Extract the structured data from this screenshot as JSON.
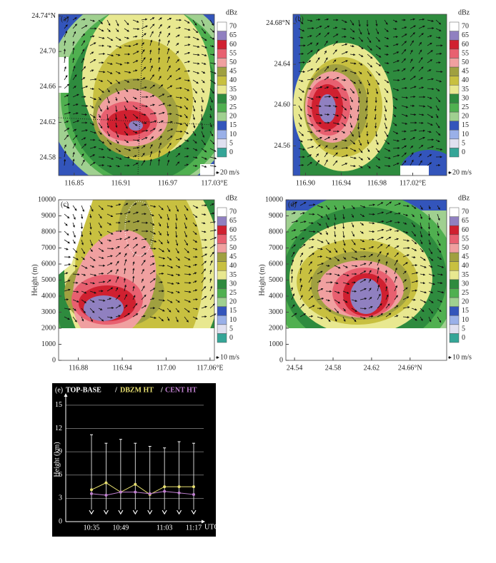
{
  "chart_data": [
    {
      "type": "contour",
      "label": "(a)",
      "xlim": [
        116.83,
        117.03
      ],
      "ylim": [
        24.56,
        24.742
      ],
      "xticks": [
        116.85,
        116.91,
        116.97,
        {
          "value": 117.03,
          "label": "117.03°E"
        }
      ],
      "yticks": [
        24.58,
        24.62,
        24.66,
        {
          "value": 24.7,
          "label": "24.70"
        },
        {
          "value": 24.74,
          "label": "24.74°N"
        }
      ],
      "colorbar": {
        "unit": "dBz",
        "levels": [
          0,
          5,
          10,
          15,
          20,
          25,
          30,
          35,
          40,
          45,
          50,
          55,
          60,
          65,
          70
        ],
        "colors": [
          "#35a597",
          "#e0e0f0",
          "#9ab0e8",
          "#3355bb",
          "#a0d090",
          "#50b050",
          "#2e8b3e",
          "#e8e890",
          "#c8c040",
          "#a0a040",
          "#f0a0a0",
          "#e86070",
          "#d02030",
          "#9080c0",
          "#ffffff"
        ]
      },
      "arrow_scale": "20 m/s"
    },
    {
      "type": "contour",
      "label": "(b)",
      "xlim": [
        116.886,
        117.058
      ],
      "ylim": [
        24.531,
        24.689
      ],
      "xticks": [
        {
          "value": 116.9,
          "label": "116.90"
        },
        116.94,
        116.98,
        {
          "value": 117.02,
          "label": "117.02°E"
        }
      ],
      "yticks": [
        24.56,
        {
          "value": 24.6,
          "label": "24.60"
        },
        24.64,
        {
          "value": 24.68,
          "label": "24.68°N"
        }
      ],
      "colorbar": {
        "unit": "dBz",
        "levels": [
          0,
          5,
          10,
          15,
          20,
          25,
          30,
          35,
          40,
          45,
          50,
          55,
          60,
          65,
          70
        ],
        "colors": [
          "#35a597",
          "#e0e0f0",
          "#9ab0e8",
          "#3355bb",
          "#a0d090",
          "#50b050",
          "#2e8b3e",
          "#e8e890",
          "#c8c040",
          "#a0a040",
          "#f0a0a0",
          "#e86070",
          "#d02030",
          "#9080c0",
          "#ffffff"
        ]
      },
      "arrow_scale": "20 m/s"
    },
    {
      "type": "contour",
      "label": "(c)",
      "y_label": "Height (m)",
      "xlim": [
        116.853,
        117.066
      ],
      "ylim": [
        0,
        10000
      ],
      "xticks": [
        116.88,
        116.94,
        {
          "value": 117.0,
          "label": "117.00"
        },
        {
          "value": 117.06,
          "label": "117.06°E"
        }
      ],
      "yticks": [
        0,
        1000,
        2000,
        3000,
        4000,
        5000,
        6000,
        7000,
        8000,
        9000,
        10000
      ],
      "colorbar": {
        "unit": "dBz",
        "levels": [
          0,
          5,
          10,
          15,
          20,
          25,
          30,
          35,
          40,
          45,
          50,
          55,
          60,
          65,
          70
        ],
        "colors": [
          "#35a597",
          "#e0e0f0",
          "#9ab0e8",
          "#3355bb",
          "#a0d090",
          "#50b050",
          "#2e8b3e",
          "#e8e890",
          "#c8c040",
          "#a0a040",
          "#f0a0a0",
          "#e86070",
          "#d02030",
          "#9080c0",
          "#ffffff"
        ]
      },
      "arrow_scale": "10 m/s"
    },
    {
      "type": "contour",
      "label": "(d)",
      "y_label": "Height (m)",
      "xlim": [
        24.531,
        24.698
      ],
      "ylim": [
        0,
        10000
      ],
      "xticks": [
        24.54,
        24.58,
        24.62,
        {
          "value": 24.66,
          "label": "24.66°N"
        }
      ],
      "yticks": [
        0,
        1000,
        2000,
        3000,
        4000,
        5000,
        6000,
        7000,
        8000,
        9000,
        10000
      ],
      "colorbar": {
        "unit": "dBz",
        "levels": [
          0,
          5,
          10,
          15,
          20,
          25,
          30,
          35,
          40,
          45,
          50,
          55,
          60,
          65,
          70
        ],
        "colors": [
          "#35a597",
          "#e0e0f0",
          "#9ab0e8",
          "#3355bb",
          "#a0d090",
          "#50b050",
          "#2e8b3e",
          "#e8e890",
          "#c8c040",
          "#a0a040",
          "#f0a0a0",
          "#e86070",
          "#d02030",
          "#9080c0",
          "#ffffff"
        ]
      },
      "arrow_scale": "10 m/s"
    },
    {
      "type": "line",
      "label": "(e)",
      "separator": "/",
      "y_label": "Height (km)",
      "x_label": "UTC",
      "categories": [
        "10:35",
        null,
        "10:49",
        null,
        null,
        "11:03",
        null,
        "11:17"
      ],
      "ylim": [
        0,
        16
      ],
      "yticks": [
        0,
        3,
        6,
        9,
        12,
        15
      ],
      "grid": true,
      "series": [
        {
          "name": "TOP-BASE",
          "color": "#ffffff",
          "top": [
            11.2,
            10.1,
            10.6,
            10.1,
            9.7,
            9.5,
            10.3,
            10.1
          ],
          "base": [
            1.0,
            1.0,
            1.0,
            1.0,
            1.0,
            1.0,
            1.0,
            1.0
          ]
        },
        {
          "name": "DBZM HT",
          "color": "#e8e070",
          "values": [
            4.1,
            5.0,
            3.8,
            4.8,
            3.5,
            4.5,
            4.5,
            4.5
          ]
        },
        {
          "name": "CENT HT",
          "color": "#c080d0",
          "values": [
            3.6,
            3.4,
            3.8,
            3.8,
            3.6,
            3.9,
            3.7,
            3.5
          ]
        }
      ]
    }
  ]
}
